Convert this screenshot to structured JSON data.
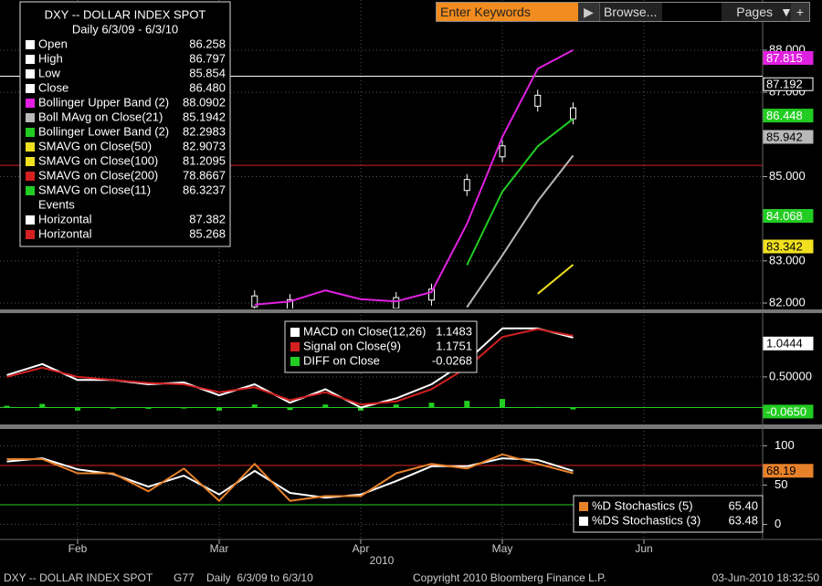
{
  "search": {
    "placeholder": "Enter Keywords",
    "browse": "Browse...",
    "pages": "Pages",
    "plus": "+"
  },
  "footer": {
    "security": "DXY -- DOLLAR INDEX SPOT",
    "code": "G77",
    "range": "Daily  6/3/09 to 6/3/10",
    "copyright": "Copyright 2010 Bloomberg Finance L.P.",
    "timestamp": "03-Jun-2010 18:32:50"
  },
  "chart_data": [
    {
      "type": "line",
      "title": "DXY -- DOLLAR INDEX SPOT",
      "subtitle": "Daily 6/3/09 - 6/3/10",
      "ylim": [
        81.87,
        89.19
      ],
      "yticks": [
        {
          "value": 82,
          "label": "82.000"
        },
        {
          "value": 83,
          "label": "83.000"
        },
        {
          "value": 85,
          "label": "85.000"
        },
        {
          "value": 87,
          "label": "87.000"
        },
        {
          "value": 88,
          "label": "88.000"
        }
      ],
      "grid": true,
      "legend": [
        {
          "name": "Open",
          "color": "#ffffff",
          "value": "86.258"
        },
        {
          "name": "High",
          "color": "#ffffff",
          "value": "86.797"
        },
        {
          "name": "Low",
          "color": "#ffffff",
          "value": "85.854"
        },
        {
          "name": "Close",
          "color": "#ffffff",
          "value": "86.480"
        },
        {
          "name": "Bollinger Upper Band (2)",
          "color": "#e020e0",
          "value": "88.0902"
        },
        {
          "name": "Boll MAvg on Close(21)",
          "color": "#b8b8b8",
          "value": "85.1942"
        },
        {
          "name": "Bollinger Lower Band (2)",
          "color": "#22cc22",
          "value": "82.2983"
        },
        {
          "name": "SMAVG on Close(50)",
          "color": "#f0e020",
          "value": "82.9073"
        },
        {
          "name": "SMAVG on Close(100)",
          "color": "#f0e020",
          "value": "81.2095"
        },
        {
          "name": "SMAVG on Close(200)",
          "color": "#d42020",
          "value": "78.8667"
        },
        {
          "name": "SMAVG on Close(11)",
          "color": "#22cc22",
          "value": "86.3237"
        },
        {
          "name": "Events"
        },
        {
          "name": "Horizontal",
          "color": "#ffffff",
          "value": "87.382"
        },
        {
          "name": "Horizontal",
          "color": "#d42020",
          "value": "85.268"
        }
      ],
      "hlines": [
        {
          "value": 87.382,
          "color": "#ffffff"
        },
        {
          "value": 85.268,
          "color": "#d42020"
        }
      ],
      "series": [
        {
          "style": "bar",
          "color": "#ffffff",
          "values": [
            null,
            null,
            null,
            null,
            null,
            null,
            null,
            82.04,
            81.95,
            null,
            null,
            82.0,
            82.2,
            84.8,
            85.6,
            86.8,
            86.5,
            null,
            null
          ]
        },
        {
          "color": "#e020e0",
          "values": [
            null,
            null,
            null,
            null,
            null,
            null,
            null,
            81.96,
            82.04,
            82.3,
            82.09,
            82.04,
            82.26,
            83.88,
            85.94,
            87.56,
            88.0,
            null,
            null
          ]
        },
        {
          "color": "#b8b8b8",
          "values": [
            null,
            null,
            null,
            null,
            null,
            null,
            null,
            null,
            null,
            null,
            null,
            null,
            null,
            81.9,
            83.13,
            84.42,
            85.5,
            null,
            null
          ]
        },
        {
          "color": "#22cc22",
          "values": [
            null,
            null,
            null,
            null,
            null,
            null,
            null,
            null,
            null,
            null,
            null,
            null,
            null,
            82.9,
            84.64,
            85.72,
            86.37,
            null,
            null
          ]
        },
        {
          "color": "#f0e020",
          "values": [
            null,
            null,
            null,
            null,
            null,
            null,
            null,
            null,
            null,
            null,
            null,
            null,
            null,
            null,
            null,
            82.22,
            82.91,
            null,
            null
          ]
        }
      ],
      "tags": [
        {
          "value": 87.815,
          "color": "#e020e0"
        },
        {
          "value": 87.192,
          "color": "#000000"
        },
        {
          "value": 86.448,
          "color": "#22cc22"
        },
        {
          "value": 85.942,
          "color": "#b8b8b8"
        },
        {
          "value": 84.068,
          "color": "#22cc22"
        },
        {
          "value": 83.342,
          "color": "#f0e020"
        }
      ]
    },
    {
      "type": "line",
      "ylim": [
        -0.23,
        1.51
      ],
      "yticks": [
        {
          "value": 0.5,
          "label": "0.50000"
        }
      ],
      "grid": true,
      "legend": [
        {
          "name": "MACD on Close(12,26)",
          "color": "#ffffff",
          "value": "1.1483"
        },
        {
          "name": "Signal on Close(9)",
          "color": "#d42020",
          "value": "1.1751"
        },
        {
          "name": "DIFF on Close",
          "color": "#22cc22",
          "value": "-0.0268"
        }
      ],
      "hlines": [
        {
          "value": 0,
          "color": "#22cc22"
        }
      ],
      "series": [
        {
          "style": "bar",
          "color": "#22cc22",
          "values": [
            0.03,
            0.06,
            -0.05,
            0.0,
            -0.02,
            0.0,
            -0.05,
            0.05,
            -0.04,
            0.05,
            -0.05,
            0.05,
            0.08,
            0.11,
            0.14,
            0.01,
            -0.03,
            null,
            null
          ]
        },
        {
          "color": "#ffffff",
          "values": [
            0.53,
            0.71,
            0.45,
            0.45,
            0.38,
            0.41,
            0.2,
            0.38,
            0.08,
            0.3,
            0.0,
            0.15,
            0.38,
            0.76,
            1.29,
            1.29,
            1.14,
            null,
            null
          ]
        },
        {
          "color": "#d42020",
          "values": [
            0.5,
            0.65,
            0.5,
            0.45,
            0.4,
            0.38,
            0.25,
            0.33,
            0.12,
            0.25,
            0.05,
            0.1,
            0.3,
            0.65,
            1.15,
            1.28,
            1.17,
            null,
            null
          ]
        }
      ],
      "tags": [
        {
          "value": 1.0444,
          "color": "#ffffff"
        },
        {
          "value": -0.065,
          "label": "-0.0650",
          "color": "#22cc22"
        }
      ]
    },
    {
      "type": "line",
      "ylim": [
        -18,
        119
      ],
      "yticks": [
        0,
        50,
        100
      ],
      "grid": true,
      "categories": [
        null,
        null,
        "Feb",
        null,
        null,
        null,
        "Mar",
        null,
        null,
        null,
        "Apr",
        null,
        null,
        null,
        "May",
        null,
        null,
        null,
        "Jun"
      ],
      "xlabel": "2010",
      "legend": [
        {
          "name": "%D Stochastics (5)",
          "color": "#e8822a",
          "value": "65.40"
        },
        {
          "name": "%DS Stochastics (3)",
          "color": "#ffffff",
          "value": "63.48"
        }
      ],
      "hlines": [
        {
          "value": 75,
          "color": "#d42020"
        },
        {
          "value": 25,
          "color": "#22cc22"
        }
      ],
      "series": [
        {
          "color": "#ffffff",
          "values": [
            80,
            84,
            70,
            64,
            48,
            62,
            38,
            68,
            40,
            34,
            38,
            55,
            74,
            74,
            84,
            82,
            68,
            null,
            null
          ]
        },
        {
          "color": "#e8822a",
          "values": [
            83,
            83,
            65,
            65,
            42,
            71,
            30,
            77,
            30,
            36,
            36,
            65,
            77,
            71,
            89,
            77,
            65,
            null,
            null
          ]
        }
      ],
      "tags": [
        {
          "value": 68.19,
          "color": "#e8822a"
        }
      ]
    }
  ]
}
